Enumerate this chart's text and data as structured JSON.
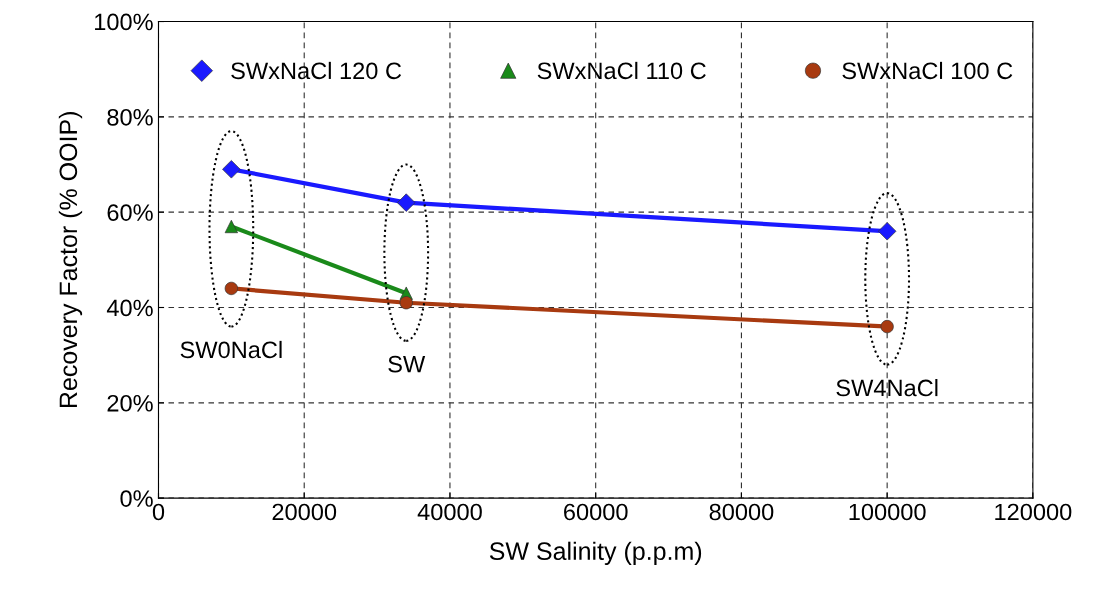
{
  "chart_data": {
    "type": "line",
    "xlabel": "SW Salinity (p.p.m)",
    "ylabel": "Recovery Factor (% OOIP)",
    "series": [
      {
        "name": "SWxNaCl 120 C",
        "color": "#1a1aff",
        "marker": "diamond",
        "x": [
          10000,
          34000,
          100000
        ],
        "values": [
          69,
          62,
          56
        ]
      },
      {
        "name": "SWxNaCl 110 C",
        "color": "#1a8a1a",
        "marker": "triangle",
        "x": [
          10000,
          34000
        ],
        "values": [
          57,
          43
        ]
      },
      {
        "name": "SWxNaCl 100 C",
        "color": "#a83a10",
        "marker": "circle",
        "x": [
          10000,
          34000,
          100000
        ],
        "values": [
          44,
          41,
          36
        ]
      }
    ],
    "annotations": [
      "SW0NaCl",
      "SW",
      "SW4NaCl"
    ],
    "xlim": [
      0,
      120000
    ],
    "xticks": [
      0,
      20000,
      40000,
      60000,
      80000,
      100000,
      120000
    ],
    "ylim": [
      0,
      100
    ],
    "yticks": [
      {
        "value": 0,
        "label": "0%"
      },
      {
        "value": 20,
        "label": "20%"
      },
      {
        "value": 40,
        "label": "40%"
      },
      {
        "value": 60,
        "label": "60%"
      },
      {
        "value": 80,
        "label": "80%"
      },
      {
        "value": 100,
        "label": "100%"
      }
    ],
    "grid": true,
    "legend": "top",
    "line_style": "solid"
  }
}
